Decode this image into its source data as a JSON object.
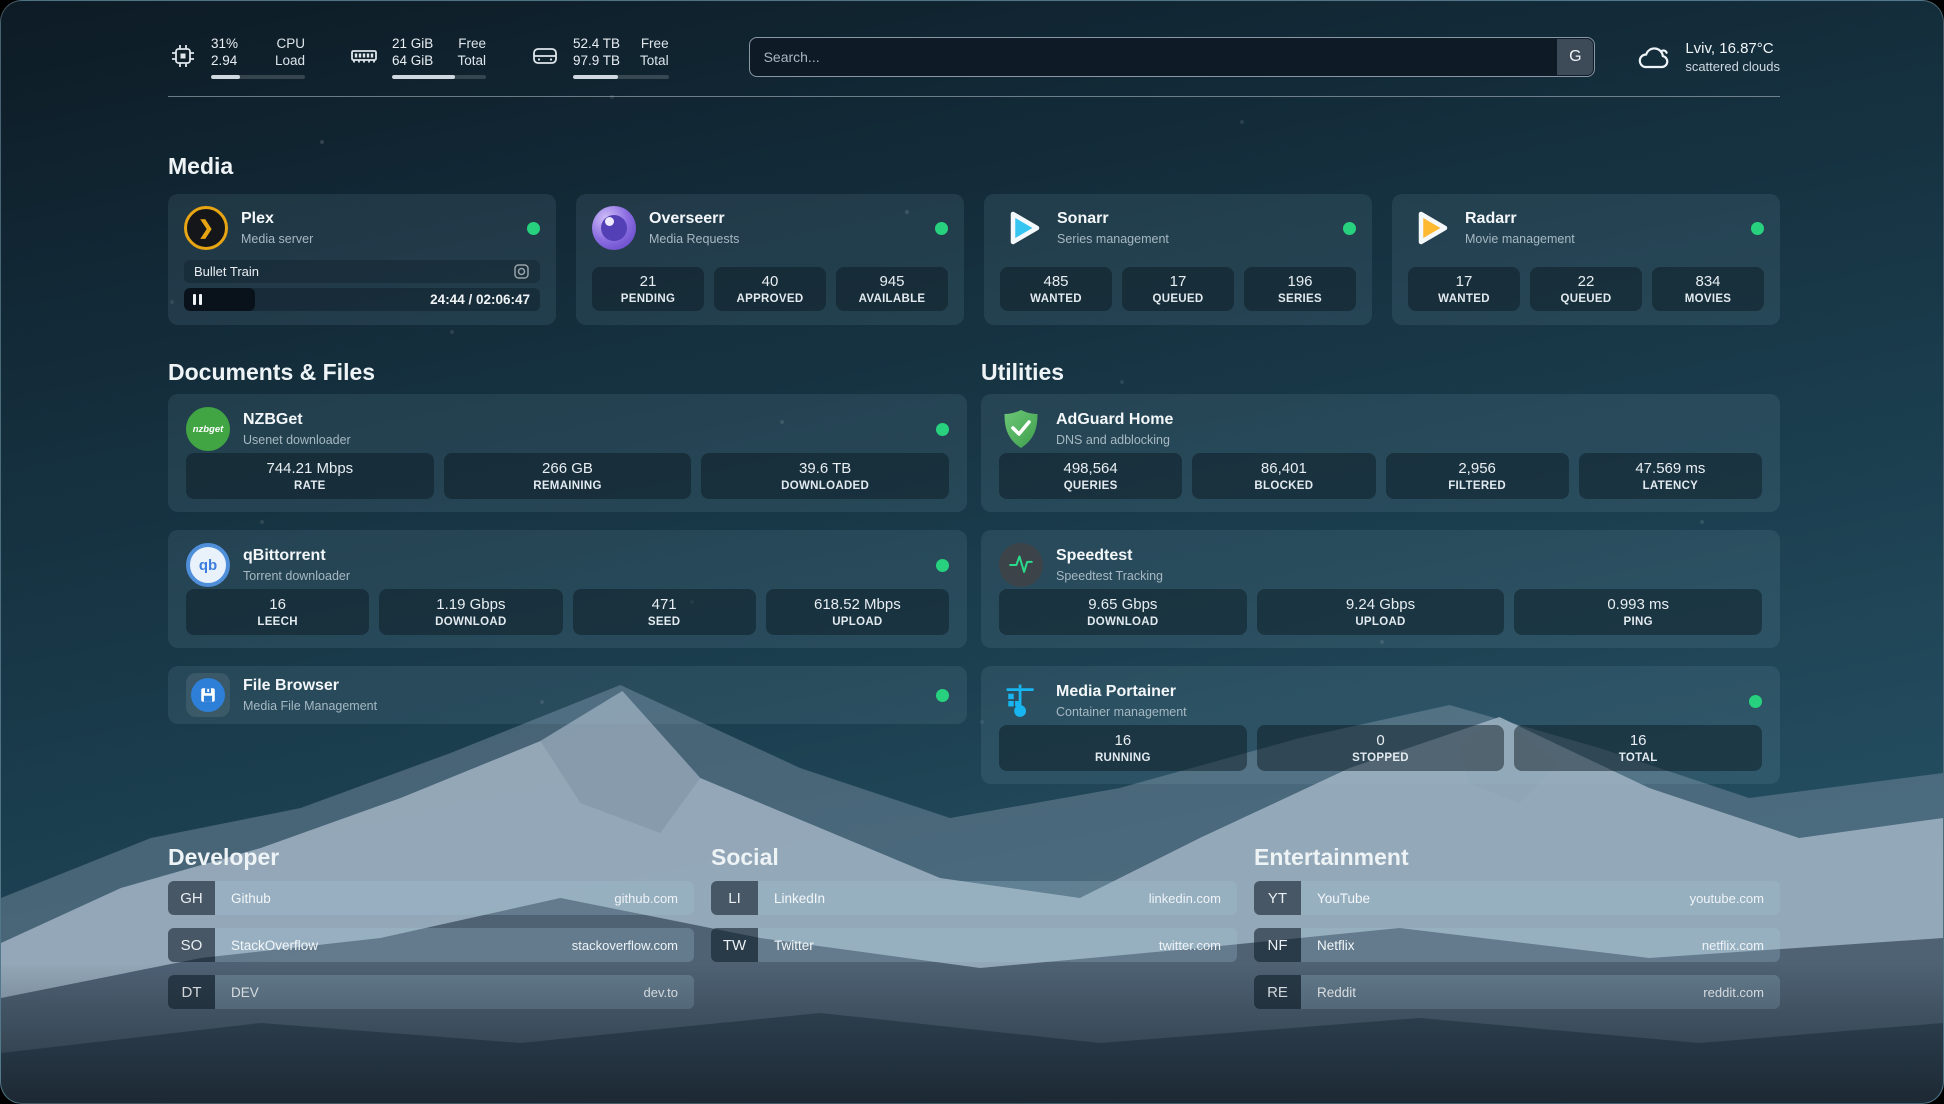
{
  "app": {
    "search_placeholder": "Search...",
    "search_button": "G"
  },
  "system_stats": [
    {
      "icon": "cpu-icon",
      "value": "31%",
      "value2": "2.94",
      "label": "CPU",
      "label2": "Load",
      "progress_pct": 31
    },
    {
      "icon": "memory-icon",
      "value": "21 GiB",
      "value2": "64 GiB",
      "label": "Free",
      "label2": "Total",
      "progress_pct": 67
    },
    {
      "icon": "disk-icon",
      "value": "52.4 TB",
      "value2": "97.9 TB",
      "label": "Free",
      "label2": "Total",
      "progress_pct": 47
    }
  ],
  "weather": {
    "icon": "cloud-icon",
    "title": "Lviv, 16.87°C",
    "subtitle": "scattered clouds"
  },
  "media_section": {
    "title": "Media",
    "plex": {
      "icon": "plex-icon",
      "name": "Plex",
      "subtitle": "Media server",
      "status": "online",
      "now_playing": "Bullet Train",
      "time_display": "24:44 / 02:06:47",
      "progress_pct": 20
    },
    "overseerr": {
      "icon": "overseerr-icon",
      "name": "Overseerr",
      "subtitle": "Media Requests",
      "status": "online",
      "stats": [
        {
          "value": "21",
          "label": "PENDING"
        },
        {
          "value": "40",
          "label": "APPROVED"
        },
        {
          "value": "945",
          "label": "AVAILABLE"
        }
      ]
    },
    "sonarr": {
      "icon": "sonarr-icon",
      "name": "Sonarr",
      "subtitle": "Series management",
      "status": "online",
      "stats": [
        {
          "value": "485",
          "label": "WANTED"
        },
        {
          "value": "17",
          "label": "QUEUED"
        },
        {
          "value": "196",
          "label": "SERIES"
        }
      ]
    },
    "radarr": {
      "icon": "radarr-icon",
      "name": "Radarr",
      "subtitle": "Movie management",
      "status": "online",
      "stats": [
        {
          "value": "17",
          "label": "WANTED"
        },
        {
          "value": "22",
          "label": "QUEUED"
        },
        {
          "value": "834",
          "label": "MOVIES"
        }
      ]
    }
  },
  "documents_section": {
    "title": "Documents & Files",
    "nzbget": {
      "icon": "nzbget-icon",
      "icon_text": "nzbget",
      "name": "NZBGet",
      "subtitle": "Usenet downloader",
      "status": "online",
      "stats": [
        {
          "value": "744.21 Mbps",
          "label": "RATE"
        },
        {
          "value": "266 GB",
          "label": "REMAINING"
        },
        {
          "value": "39.6 TB",
          "label": "DOWNLOADED"
        }
      ]
    },
    "qbittorrent": {
      "icon": "qbittorrent-icon",
      "icon_text": "qb",
      "name": "qBittorrent",
      "subtitle": "Torrent downloader",
      "status": "online",
      "stats": [
        {
          "value": "16",
          "label": "LEECH"
        },
        {
          "value": "1.19 Gbps",
          "label": "DOWNLOAD"
        },
        {
          "value": "471",
          "label": "SEED"
        },
        {
          "value": "618.52 Mbps",
          "label": "UPLOAD"
        }
      ]
    },
    "filebrowser": {
      "icon": "filebrowser-icon",
      "name": "File Browser",
      "subtitle": "Media File Management",
      "status": "online"
    }
  },
  "utilities_section": {
    "title": "Utilities",
    "adguard": {
      "icon": "adguard-icon",
      "name": "AdGuard Home",
      "subtitle": "DNS and adblocking",
      "stats": [
        {
          "value": "498,564",
          "label": "QUERIES"
        },
        {
          "value": "86,401",
          "label": "BLOCKED"
        },
        {
          "value": "2,956",
          "label": "FILTERED"
        },
        {
          "value": "47.569 ms",
          "label": "LATENCY"
        }
      ]
    },
    "speedtest": {
      "icon": "speedtest-icon",
      "name": "Speedtest",
      "subtitle": "Speedtest Tracking",
      "stats": [
        {
          "value": "9.65 Gbps",
          "label": "DOWNLOAD"
        },
        {
          "value": "9.24 Gbps",
          "label": "UPLOAD"
        },
        {
          "value": "0.993 ms",
          "label": "PING"
        }
      ]
    },
    "portainer": {
      "icon": "portainer-icon",
      "name": "Media Portainer",
      "subtitle": "Container management",
      "status": "online",
      "stats": [
        {
          "value": "16",
          "label": "RUNNING"
        },
        {
          "value": "0",
          "label": "STOPPED"
        },
        {
          "value": "16",
          "label": "TOTAL"
        }
      ]
    }
  },
  "bookmarks": [
    {
      "title": "Developer",
      "items": [
        {
          "abbr": "GH",
          "name": "Github",
          "url": "github.com"
        },
        {
          "abbr": "SO",
          "name": "StackOverflow",
          "url": "stackoverflow.com"
        },
        {
          "abbr": "DT",
          "name": "DEV",
          "url": "dev.to"
        }
      ]
    },
    {
      "title": "Social",
      "items": [
        {
          "abbr": "LI",
          "name": "LinkedIn",
          "url": "linkedin.com"
        },
        {
          "abbr": "TW",
          "name": "Twitter",
          "url": "twitter.com"
        }
      ]
    },
    {
      "title": "Entertainment",
      "items": [
        {
          "abbr": "YT",
          "name": "YouTube",
          "url": "youtube.com"
        },
        {
          "abbr": "NF",
          "name": "Netflix",
          "url": "netflix.com"
        },
        {
          "abbr": "RE",
          "name": "Reddit",
          "url": "reddit.com"
        }
      ]
    }
  ],
  "colors": {
    "status_online": "#27d17e",
    "plex_amber": "#e7a413",
    "sonarr_cyan": "#35c5f0",
    "radarr_yellow": "#ffb931",
    "adguard_green": "#4caf50",
    "portainer_blue": "#18b6f0"
  }
}
